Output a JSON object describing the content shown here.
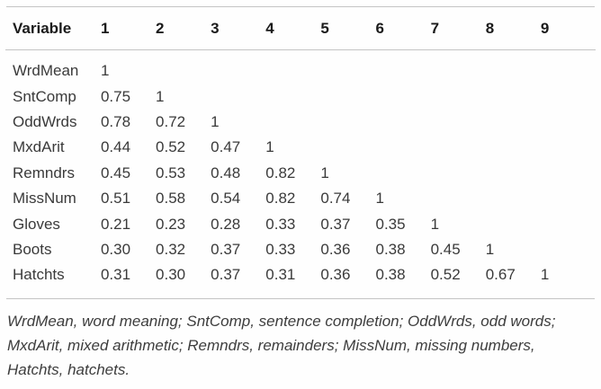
{
  "colors": {
    "background": "#fefefe",
    "header_text": "#1b1b1b",
    "body_text": "#3a3a3a",
    "rule": "#c4c4c4",
    "footnote_text": "#3d3d3d"
  },
  "table": {
    "header": {
      "variable": "Variable",
      "columns": [
        "1",
        "2",
        "3",
        "4",
        "5",
        "6",
        "7",
        "8",
        "9"
      ]
    },
    "rows": [
      {
        "label": "WrdMean",
        "values": [
          "1",
          "",
          "",
          "",
          "",
          "",
          "",
          "",
          ""
        ]
      },
      {
        "label": "SntComp",
        "values": [
          "0.75",
          "1",
          "",
          "",
          "",
          "",
          "",
          "",
          ""
        ]
      },
      {
        "label": "OddWrds",
        "values": [
          "0.78",
          "0.72",
          "1",
          "",
          "",
          "",
          "",
          "",
          ""
        ]
      },
      {
        "label": "MxdArit",
        "values": [
          "0.44",
          "0.52",
          "0.47",
          "1",
          "",
          "",
          "",
          "",
          ""
        ]
      },
      {
        "label": "Remndrs",
        "values": [
          "0.45",
          "0.53",
          "0.48",
          "0.82",
          "1",
          "",
          "",
          "",
          ""
        ]
      },
      {
        "label": "MissNum",
        "values": [
          "0.51",
          "0.58",
          "0.54",
          "0.82",
          "0.74",
          "1",
          "",
          "",
          ""
        ]
      },
      {
        "label": "Gloves",
        "values": [
          "0.21",
          "0.23",
          "0.28",
          "0.33",
          "0.37",
          "0.35",
          "1",
          "",
          ""
        ]
      },
      {
        "label": "Boots",
        "values": [
          "0.30",
          "0.32",
          "0.37",
          "0.33",
          "0.36",
          "0.38",
          "0.45",
          "1",
          ""
        ]
      },
      {
        "label": "Hatchts",
        "values": [
          "0.31",
          "0.30",
          "0.37",
          "0.31",
          "0.36",
          "0.38",
          "0.52",
          "0.67",
          "1"
        ]
      }
    ]
  },
  "chart_data": {
    "type": "table",
    "title": "",
    "columns": [
      "Variable",
      "1",
      "2",
      "3",
      "4",
      "5",
      "6",
      "7",
      "8",
      "9"
    ],
    "variables": [
      "WrdMean",
      "SntComp",
      "OddWrds",
      "MxdArit",
      "Remndrs",
      "MissNum",
      "Gloves",
      "Boots",
      "Hatchts"
    ],
    "matrix_lower_triangle": [
      [
        1
      ],
      [
        0.75,
        1
      ],
      [
        0.78,
        0.72,
        1
      ],
      [
        0.44,
        0.52,
        0.47,
        1
      ],
      [
        0.45,
        0.53,
        0.48,
        0.82,
        1
      ],
      [
        0.51,
        0.58,
        0.54,
        0.82,
        0.74,
        1
      ],
      [
        0.21,
        0.23,
        0.28,
        0.33,
        0.37,
        0.35,
        1
      ],
      [
        0.3,
        0.32,
        0.37,
        0.33,
        0.36,
        0.38,
        0.45,
        1
      ],
      [
        0.31,
        0.3,
        0.37,
        0.31,
        0.36,
        0.38,
        0.52,
        0.67,
        1
      ]
    ]
  },
  "footnote": {
    "lines": [
      "WrdMean, word meaning; SntComp, sentence completion; OddWrds, odd words;",
      "MxdArit, mixed arithmetic; Remndrs, remainders; MissNum, missing numbers,",
      "Hatchts, hatchets."
    ],
    "full_text": "WrdMean, word meaning; SntComp, sentence completion; OddWrds, odd words; MxdArit, mixed arithmetic; Remndrs, remainders; MissNum, missing numbers, Hatchts, hatchets."
  }
}
